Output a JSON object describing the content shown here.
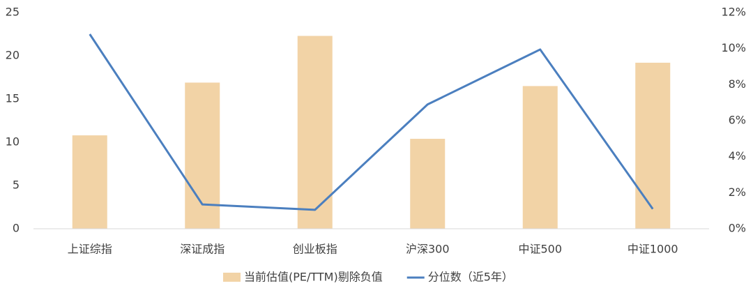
{
  "chart_data": {
    "type": "bar-line",
    "categories": [
      "上证综指",
      "深证成指",
      "创业板指",
      "沪深300",
      "中证500",
      "中证1000"
    ],
    "series": [
      {
        "name": "当前估值(PE/TTM)剔除负值",
        "type": "bar",
        "color": "#f2d3a6",
        "values": [
          10.8,
          16.9,
          22.3,
          10.4,
          16.5,
          19.2
        ]
      },
      {
        "name": "分位数（近5年）",
        "type": "line",
        "axis": "y2",
        "color": "#4b7fbf",
        "values": [
          10.8,
          1.35,
          1.05,
          6.9,
          9.95,
          1.1
        ]
      }
    ],
    "ylim": [
      0,
      25
    ],
    "yticks": [
      0,
      5,
      10,
      15,
      20,
      25
    ],
    "y2lim": [
      0,
      12
    ],
    "y2ticks": [
      {
        "value": 0,
        "label": "0%"
      },
      {
        "value": 2,
        "label": "2%"
      },
      {
        "value": 4,
        "label": "4%"
      },
      {
        "value": 6,
        "label": "6%"
      },
      {
        "value": 8,
        "label": "8%"
      },
      {
        "value": 10,
        "label": "10%"
      },
      {
        "value": 12,
        "label": "12%"
      }
    ],
    "grid": false,
    "legend": "bottom"
  }
}
